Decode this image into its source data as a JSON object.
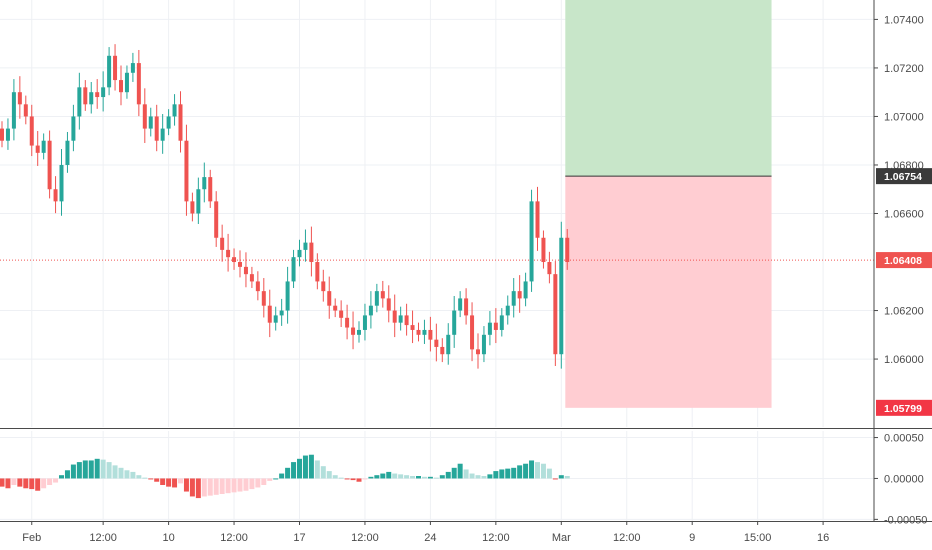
{
  "chart_data": [
    {
      "type": "candlestick",
      "ylim": [
        1.0572,
        1.0748
      ],
      "y_ticks": [
        {
          "value": 1.074,
          "label": "1.07400"
        },
        {
          "value": 1.072,
          "label": "1.07200"
        },
        {
          "value": 1.07,
          "label": "1.07000"
        },
        {
          "value": 1.068,
          "label": "1.06800"
        },
        {
          "value": 1.066,
          "label": "1.06600"
        },
        {
          "value": 1.062,
          "label": "1.06200"
        },
        {
          "value": 1.06,
          "label": "1.06000"
        }
      ],
      "x_ticks": [
        {
          "i": 5,
          "label": "Feb"
        },
        {
          "i": 17,
          "label": "12:00"
        },
        {
          "i": 28,
          "label": "10"
        },
        {
          "i": 39,
          "label": "12:00"
        },
        {
          "i": 50,
          "label": "17"
        },
        {
          "i": 61,
          "label": "12:00"
        },
        {
          "i": 72,
          "label": "24"
        },
        {
          "i": 83,
          "label": "12:00"
        },
        {
          "i": 94,
          "label": "Mar"
        },
        {
          "i": 105,
          "label": "12:00"
        },
        {
          "i": 116,
          "label": "9"
        },
        {
          "i": 127,
          "label": "15:00"
        },
        {
          "i": 138,
          "label": "16"
        }
      ],
      "candles_close": [
        1.069,
        1.0695,
        1.071,
        1.0705,
        1.07,
        1.0688,
        1.0685,
        1.069,
        1.067,
        1.0665,
        1.068,
        1.069,
        1.07,
        1.0712,
        1.0705,
        1.071,
        1.0708,
        1.0712,
        1.0725,
        1.0715,
        1.071,
        1.0718,
        1.0722,
        1.0705,
        1.0695,
        1.07,
        1.069,
        1.0695,
        1.07,
        1.0705,
        1.069,
        1.0665,
        1.066,
        1.067,
        1.0675,
        1.0665,
        1.065,
        1.0645,
        1.0642,
        1.064,
        1.0638,
        1.0635,
        1.0632,
        1.0628,
        1.0622,
        1.0615,
        1.0618,
        1.062,
        1.0632,
        1.0642,
        1.0645,
        1.0648,
        1.064,
        1.0632,
        1.0628,
        1.0622,
        1.062,
        1.0617,
        1.0613,
        1.061,
        1.0612,
        1.0618,
        1.0622,
        1.0628,
        1.0625,
        1.062,
        1.0615,
        1.0618,
        1.0614,
        1.0612,
        1.061,
        1.0612,
        1.0608,
        1.0605,
        1.0602,
        1.061,
        1.062,
        1.0625,
        1.0618,
        1.0604,
        1.0602,
        1.061,
        1.0615,
        1.0612,
        1.0618,
        1.0622,
        1.0628,
        1.0625,
        1.0632,
        1.0665,
        1.065,
        1.064,
        1.0635,
        1.0602,
        1.065,
        1.064
      ],
      "macd_histogram": [
        -0.0001,
        -0.00012,
        -8e-05,
        -0.0001,
        -0.00012,
        -0.00013,
        -0.00015,
        -0.00012,
        -8e-05,
        -5e-05,
        4e-05,
        0.0001,
        0.00017,
        0.0002,
        0.00022,
        0.00022,
        0.00024,
        0.00023,
        0.0002,
        0.00016,
        0.00013,
        0.0001,
        8e-05,
        4e-05,
        1e-05,
        -1e-05,
        -4e-05,
        -8e-05,
        -0.0001,
        -0.00011,
        -6e-05,
        -0.00016,
        -0.00022,
        -0.00024,
        -0.00022,
        -0.00021,
        -0.0002,
        -0.00019,
        -0.00018,
        -0.00017,
        -0.00016,
        -0.00015,
        -0.00013,
        -0.00011,
        -8e-05,
        -3e-05,
        0.0,
        6e-05,
        0.00013,
        0.0002,
        0.00024,
        0.00028,
        0.00029,
        0.00022,
        0.00015,
        9e-05,
        4e-05,
        1e-05,
        -1e-05,
        -2e-05,
        -4e-05,
        -1e-05,
        2e-05,
        4e-05,
        6e-05,
        8e-05,
        6e-05,
        5e-05,
        4e-05,
        3e-05,
        3e-05,
        2e-05,
        2e-05,
        1e-05,
        4e-05,
        8e-05,
        0.00013,
        0.00018,
        0.00011,
        6e-05,
        4e-05,
        3e-05,
        5e-05,
        9e-05,
        0.00011,
        0.00012,
        0.00013,
        0.00016,
        0.00018,
        0.00022,
        0.0002,
        0.00018,
        0.00012,
        -1e-05,
        4e-05,
        3e-05
      ],
      "macd_ylim": [
        -0.00052,
        0.00058
      ],
      "macd_ticks": [
        {
          "value": 0.0005,
          "label": "0.00050"
        },
        {
          "value": 0.0,
          "label": "0.00000"
        },
        {
          "value": -0.0005,
          "label": "-0.00050"
        }
      ],
      "position_tool": {
        "from_i": 94,
        "to_i": 129,
        "entry": 1.06754,
        "stop": 1.05799,
        "target": 1.0748
      },
      "current_price": 1.06408,
      "price_tags": [
        {
          "value": 1.06754,
          "label": "1.06754",
          "bg": "#3a3a3a",
          "fg": "#ffffff"
        },
        {
          "value": 1.06408,
          "label": "1.06408",
          "bg": "#ef5350",
          "fg": "#ffffff"
        },
        {
          "value": 1.05799,
          "label": "1.05799",
          "bg": "#f23645",
          "fg": "#ffffff"
        }
      ],
      "colors": {
        "up": "#26a69a",
        "down": "#ef5350",
        "hist_pos_strong": "#26a69a",
        "hist_pos_weak": "#b2dfdb",
        "hist_neg_strong": "#ef5350",
        "hist_neg_weak": "#ffcdd2",
        "profit_zone": "#c8e6c9",
        "loss_zone": "#ffcdd2",
        "grid": "#eef0f4",
        "axis": "#4a4a4a"
      }
    }
  ]
}
